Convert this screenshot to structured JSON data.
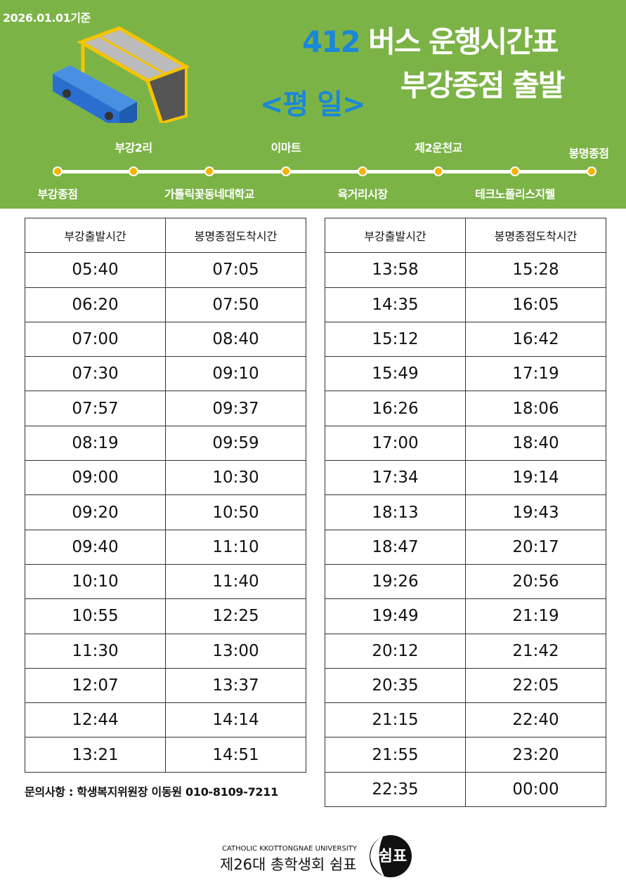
{
  "colors": {
    "header_bg": "#7cb347",
    "accent_blue": "#1a87d8",
    "stop_dot": "#f5b400"
  },
  "header": {
    "date": "2026.01.01기준",
    "route_number": "412",
    "title_rest": "버스 운행시간표",
    "subtitle": "부강종점 출발",
    "day_type": "<평 일>"
  },
  "stops": [
    "부강종점",
    "부강2리",
    "가톨릭꽃동네대학교",
    "이마트",
    "육거리시장",
    "제2운천교",
    "테크노폴리스지웰",
    "봉명종점"
  ],
  "timetable": {
    "headers": [
      "부강출발시간",
      "봉명종점도착시간"
    ],
    "left": [
      [
        "05:40",
        "07:05"
      ],
      [
        "06:20",
        "07:50"
      ],
      [
        "07:00",
        "08:40"
      ],
      [
        "07:30",
        "09:10"
      ],
      [
        "07:57",
        "09:37"
      ],
      [
        "08:19",
        "09:59"
      ],
      [
        "09:00",
        "10:30"
      ],
      [
        "09:20",
        "10:50"
      ],
      [
        "09:40",
        "11:10"
      ],
      [
        "10:10",
        "11:40"
      ],
      [
        "10:55",
        "12:25"
      ],
      [
        "11:30",
        "13:00"
      ],
      [
        "12:07",
        "13:37"
      ],
      [
        "12:44",
        "14:14"
      ],
      [
        "13:21",
        "14:51"
      ]
    ],
    "right": [
      [
        "13:58",
        "15:28"
      ],
      [
        "14:35",
        "16:05"
      ],
      [
        "15:12",
        "16:42"
      ],
      [
        "15:49",
        "17:19"
      ],
      [
        "16:26",
        "18:06"
      ],
      [
        "17:00",
        "18:40"
      ],
      [
        "17:34",
        "19:14"
      ],
      [
        "18:13",
        "19:43"
      ],
      [
        "18:47",
        "20:17"
      ],
      [
        "19:26",
        "20:56"
      ],
      [
        "19:49",
        "21:19"
      ],
      [
        "20:12",
        "21:42"
      ],
      [
        "20:35",
        "22:05"
      ],
      [
        "21:15",
        "22:40"
      ],
      [
        "21:55",
        "23:20"
      ],
      [
        "22:35",
        "00:00"
      ]
    ]
  },
  "contact": "문의사항 : 학생복지위원장 이동원 010-8109-7211",
  "footer": {
    "university": "CATHOLIC KKOTTONGNAE UNIVERSITY",
    "council": "제26대 총학생회 쉼표",
    "logo_text": "쉼표"
  }
}
